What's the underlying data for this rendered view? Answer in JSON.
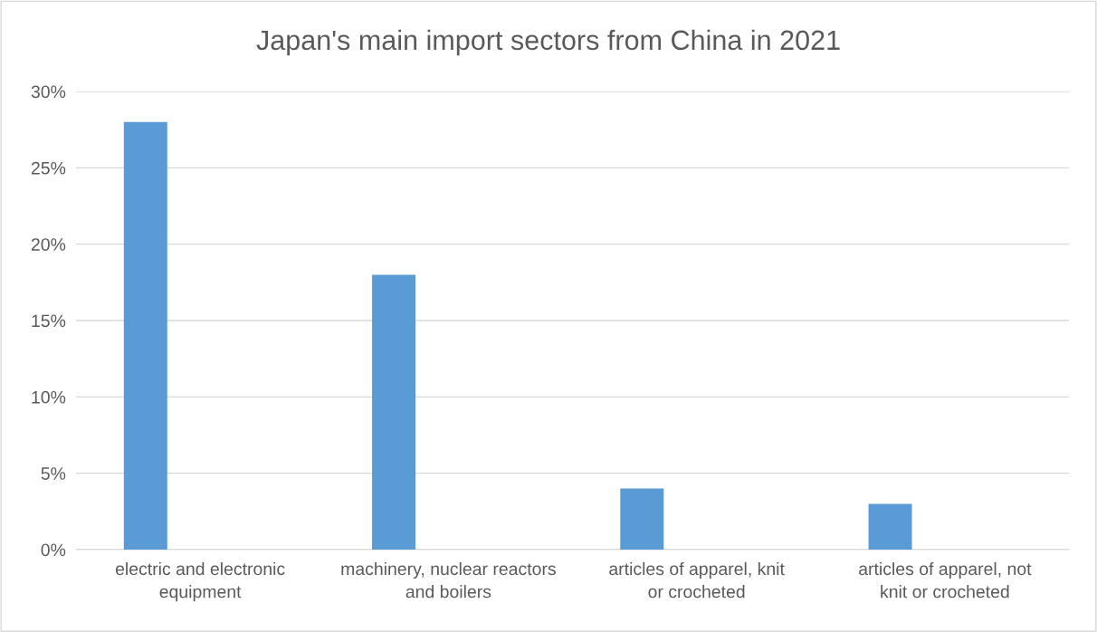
{
  "chart_data": {
    "type": "bar",
    "title": "Japan's main import sectors from China in 2021",
    "categories": [
      "electric and electronic equipment",
      "machinery, nuclear reactors and boilers",
      "articles of apparel, knit or crocheted",
      "articles of apparel, not knit or crocheted"
    ],
    "values": [
      28,
      18,
      4,
      3
    ],
    "color": "#5b9bd5",
    "ylim": [
      0,
      30
    ],
    "yticks": [
      {
        "value": 0,
        "label": "0%"
      },
      {
        "value": 5,
        "label": "5%"
      },
      {
        "value": 10,
        "label": "10%"
      },
      {
        "value": 15,
        "label": "15%"
      },
      {
        "value": 20,
        "label": "20%"
      },
      {
        "value": 25,
        "label": "25%"
      },
      {
        "value": 30,
        "label": "30%"
      }
    ],
    "grid": "y"
  }
}
